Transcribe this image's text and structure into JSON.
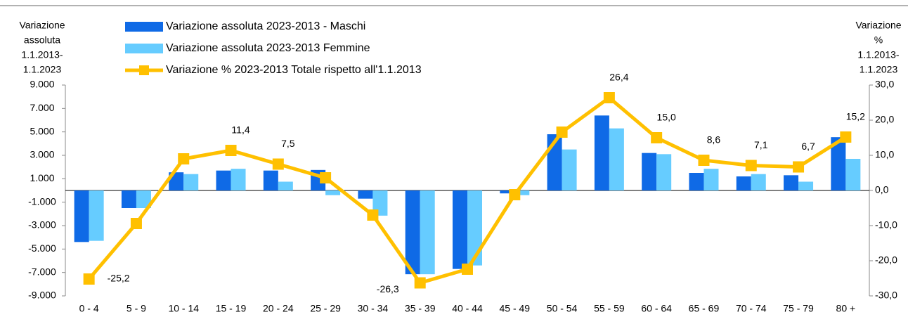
{
  "chart_data": {
    "type": "bar_line",
    "y_label": [
      "Variazione",
      "assoluta",
      "1.1.2013-",
      "1.1.2023"
    ],
    "y2_label": [
      "Variazione",
      "%",
      "1.1.2013-",
      "1.1.2023"
    ],
    "categories": [
      "0 - 4",
      "5 - 9",
      "10 - 14",
      "15 - 19",
      "20 - 24",
      "25 - 29",
      "30 - 34",
      "35 - 39",
      "40 - 44",
      "45 - 49",
      "50 - 54",
      "55 - 59",
      "60 - 64",
      "65 - 69",
      "70 - 74",
      "75 - 79",
      "80 +"
    ],
    "series": [
      {
        "name": "Variazione assoluta 2023-2013 - Maschi",
        "type": "bar",
        "color": "#0f6ae6",
        "values": [
          -4400,
          -1500,
          1550,
          1700,
          1700,
          1750,
          -700,
          -7150,
          -6700,
          -250,
          4800,
          6400,
          3200,
          1500,
          1200,
          1300,
          4550
        ]
      },
      {
        "name": "Variazione assoluta 2023-2013 Femmine",
        "type": "bar",
        "color": "#66ccff",
        "values": [
          -4300,
          -1500,
          1400,
          1850,
          750,
          -400,
          -2150,
          -7150,
          -6400,
          -400,
          3500,
          5300,
          3100,
          1850,
          1400,
          750,
          2700
        ]
      },
      {
        "name": "Variazione % 2023-2013 Totale rispetto all'1.1.2013",
        "type": "line",
        "axis": "y2",
        "color": "#ffc000",
        "values": [
          -25.2,
          -9.4,
          9.0,
          11.4,
          7.5,
          3.6,
          -7.0,
          -26.3,
          -22.4,
          -1.2,
          16.6,
          26.4,
          15.0,
          8.6,
          7.1,
          6.7,
          15.2
        ],
        "value_labels": [
          "-25,2",
          null,
          null,
          "11,4",
          "7,5",
          null,
          null,
          "-26,3",
          null,
          null,
          null,
          "26,4",
          "15,0",
          "8,6",
          "7,1",
          "6,7",
          "15,2"
        ]
      }
    ],
    "ylim": [
      -9000,
      9000
    ],
    "yticks": [
      {
        "value": -9000,
        "label": "-9.000"
      },
      {
        "value": -7000,
        "label": "-7.000"
      },
      {
        "value": -5000,
        "label": "-5.000"
      },
      {
        "value": -3000,
        "label": "-3.000"
      },
      {
        "value": -1000,
        "label": "-1.000"
      },
      {
        "value": 1000,
        "label": "1.000"
      },
      {
        "value": 3000,
        "label": "3.000"
      },
      {
        "value": 5000,
        "label": "5.000"
      },
      {
        "value": 7000,
        "label": "7.000"
      },
      {
        "value": 9000,
        "label": "9.000"
      }
    ],
    "y2lim": [
      -30,
      30
    ],
    "y2ticks": [
      {
        "value": -30,
        "label": "-30,0"
      },
      {
        "value": -20,
        "label": "-20,0"
      },
      {
        "value": -10,
        "label": "-10,0"
      },
      {
        "value": 0,
        "label": "0,0"
      },
      {
        "value": 10,
        "label": "10,0"
      },
      {
        "value": 20,
        "label": "20,0"
      },
      {
        "value": 30,
        "label": "30,0"
      }
    ],
    "grid": false
  }
}
